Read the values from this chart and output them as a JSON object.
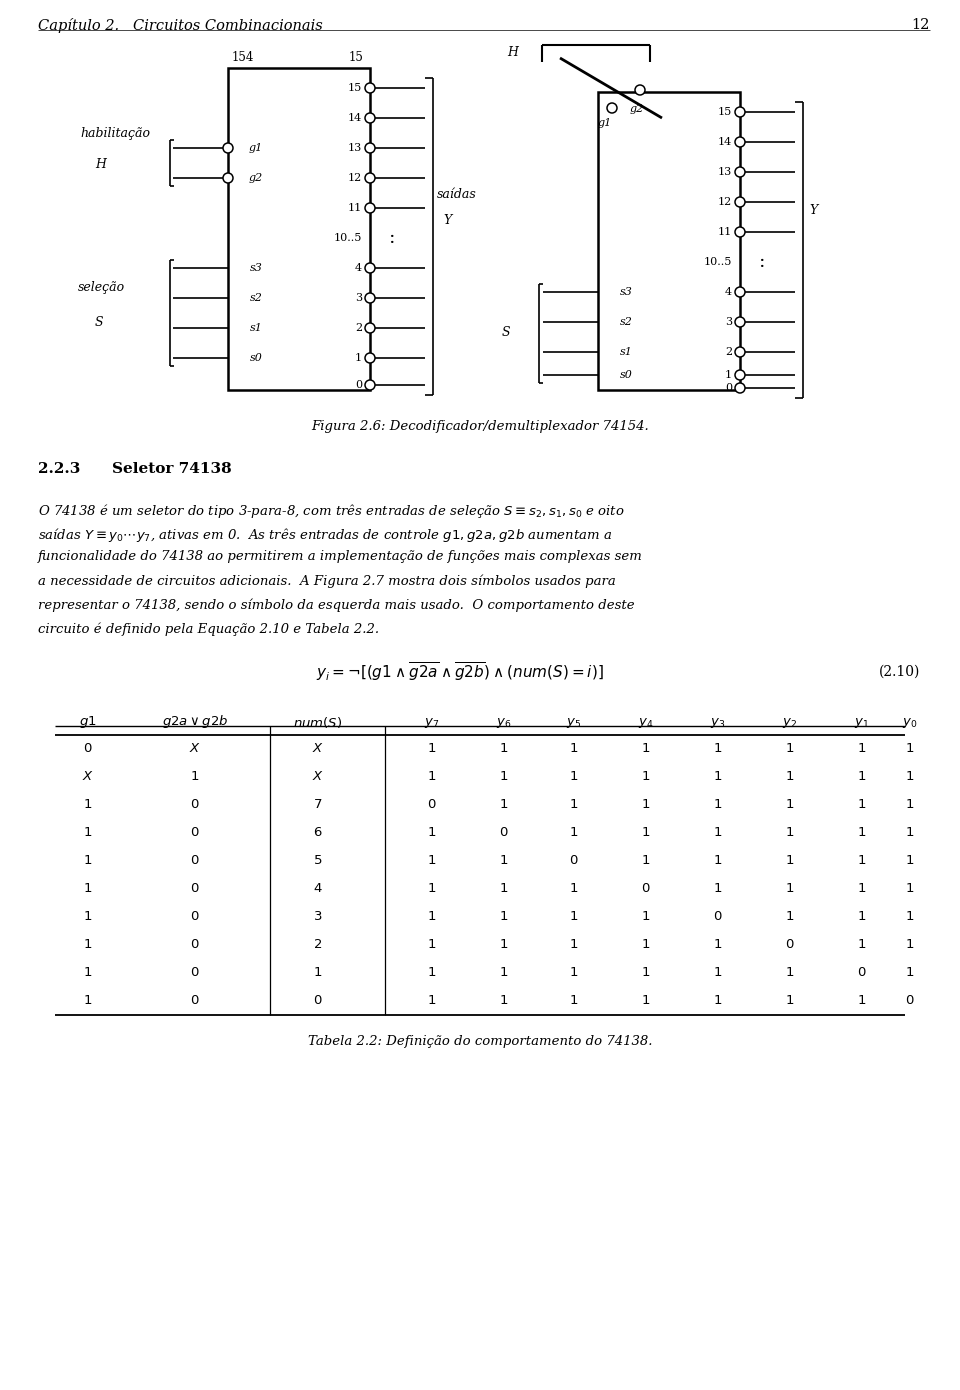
{
  "page_title": "Capítulo 2.   Circuitos Combinacionais",
  "page_number": "12",
  "fig_caption": "Figura 2.6: Decodificador/demultiplexador 74154.",
  "section_num": "2.2.3",
  "section_title": "Seletor 74138",
  "para_lines": [
    "O 74138 é um seletor do tipo 3-para-8, com três entradas de seleção $S \\equiv s_2, s_1, s_0$ e oito",
    "saídas $Y \\equiv y_0 \\cdots y_7$, ativas em 0.  As três entradas de controle $g1,g2a,g2b$ aumentam a",
    "funcionalidade do 74138 ao permitirem a implementação de funções mais complexas sem",
    "a necessidade de circuitos adicionais.  A Figura 2.7 mostra dois símbolos usados para",
    "representar o 74138, sendo o símbolo da esquerda mais usado.  O comportamento deste",
    "circuito é definido pela Equação 2.10 e Tabela 2.2."
  ],
  "eq_number": "(2.10)",
  "table_data": [
    [
      "0",
      "X",
      "X",
      "1",
      "1",
      "1",
      "1",
      "1",
      "1",
      "1",
      "1"
    ],
    [
      "X",
      "1",
      "X",
      "1",
      "1",
      "1",
      "1",
      "1",
      "1",
      "1",
      "1"
    ],
    [
      "1",
      "0",
      "7",
      "0",
      "1",
      "1",
      "1",
      "1",
      "1",
      "1",
      "1"
    ],
    [
      "1",
      "0",
      "6",
      "1",
      "0",
      "1",
      "1",
      "1",
      "1",
      "1",
      "1"
    ],
    [
      "1",
      "0",
      "5",
      "1",
      "1",
      "0",
      "1",
      "1",
      "1",
      "1",
      "1"
    ],
    [
      "1",
      "0",
      "4",
      "1",
      "1",
      "1",
      "0",
      "1",
      "1",
      "1",
      "1"
    ],
    [
      "1",
      "0",
      "3",
      "1",
      "1",
      "1",
      "1",
      "0",
      "1",
      "1",
      "1"
    ],
    [
      "1",
      "0",
      "2",
      "1",
      "1",
      "1",
      "1",
      "1",
      "0",
      "1",
      "1"
    ],
    [
      "1",
      "0",
      "1",
      "1",
      "1",
      "1",
      "1",
      "1",
      "1",
      "0",
      "1"
    ],
    [
      "1",
      "0",
      "0",
      "1",
      "1",
      "1",
      "1",
      "1",
      "1",
      "1",
      "0"
    ]
  ],
  "table_caption": "Tabela 2.2: Definição do comportamento do 74138.",
  "bg_color": "#ffffff"
}
